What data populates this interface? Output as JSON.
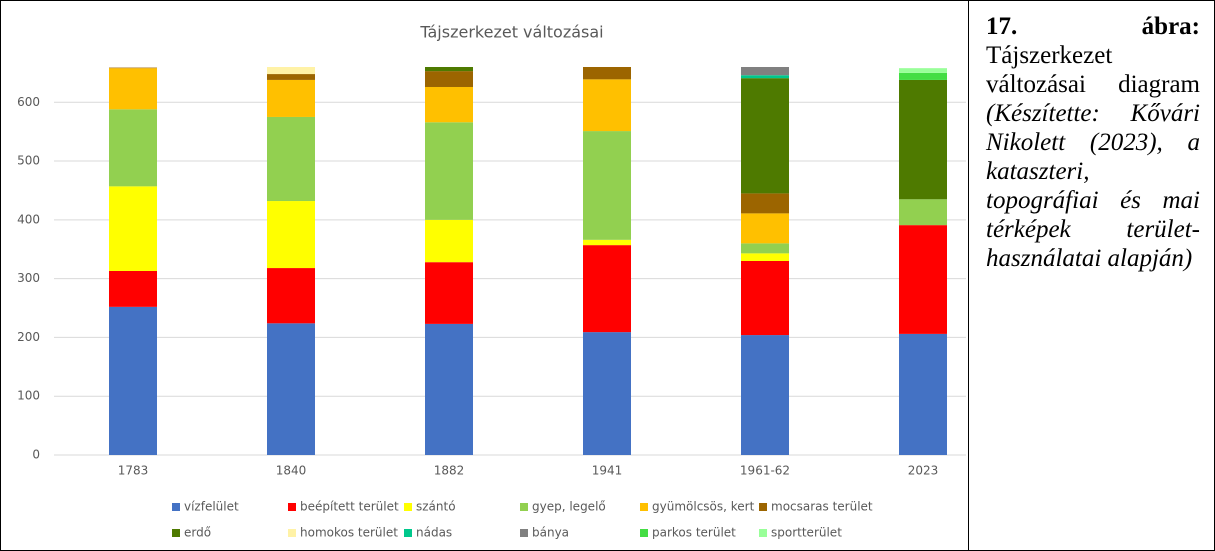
{
  "chart_data": {
    "type": "stacked_bar",
    "title": "Tájszerkezet változásai",
    "categories": [
      "1783",
      "1840",
      "1882",
      "1941",
      "1961-62",
      "2023"
    ],
    "ylim": [
      0,
      660
    ],
    "yticks": [
      0,
      100,
      200,
      300,
      400,
      500,
      600
    ],
    "grid": true,
    "series": [
      {
        "name": "vízfelület",
        "color": "#4472c4",
        "values": [
          252,
          224,
          223,
          209,
          204,
          206
        ]
      },
      {
        "name": "beépített terület",
        "color": "#ff0000",
        "values": [
          61,
          94,
          105,
          148,
          126,
          185
        ]
      },
      {
        "name": "szántó",
        "color": "#ffff00",
        "values": [
          144,
          114,
          72,
          9,
          13,
          0
        ]
      },
      {
        "name": "gyep, legelő",
        "color": "#92d050",
        "values": [
          131,
          143,
          166,
          185,
          17,
          44
        ]
      },
      {
        "name": "gyümölcsös, kert",
        "color": "#ffc000",
        "values": [
          70,
          63,
          60,
          88,
          51,
          0
        ]
      },
      {
        "name": "mocsaras terület",
        "color": "#9c6500",
        "values": [
          1,
          10,
          27,
          21,
          34,
          0
        ]
      },
      {
        "name": "erdő",
        "color": "#4e7a00",
        "values": [
          0,
          0,
          7,
          0,
          196,
          203
        ]
      },
      {
        "name": "homokos terület",
        "color": "#fff2a6",
        "values": [
          0,
          12,
          0,
          0,
          0,
          0
        ]
      },
      {
        "name": "nádas",
        "color": "#00c88c",
        "values": [
          0,
          0,
          0,
          0,
          5,
          0
        ]
      },
      {
        "name": "bánya",
        "color": "#808080",
        "values": [
          0,
          0,
          0,
          0,
          14,
          0
        ]
      },
      {
        "name": "parkos terület",
        "color": "#44dd44",
        "values": [
          0,
          0,
          0,
          0,
          0,
          12
        ]
      },
      {
        "name": "sportterület",
        "color": "#99ff99",
        "values": [
          0,
          0,
          0,
          0,
          0,
          8
        ]
      }
    ]
  },
  "caption": {
    "label": "17. ábra:",
    "title": "Tájszerkezet változásai diagram",
    "note": "(Készítette: Kővári Nikolett (2023), a kataszteri, topográfiai és mai térképek terület-használatai alapján)"
  }
}
